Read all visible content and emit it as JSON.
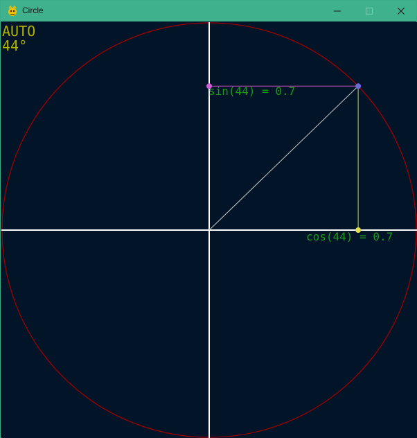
{
  "window": {
    "title": "Circle",
    "app_icon": "pygame-snake-icon",
    "controls": {
      "minimize_icon": "minimize-icon",
      "maximize_icon": "maximize-icon",
      "close_icon": "close-icon"
    }
  },
  "hud": {
    "mode": "AUTO",
    "angle": "44°"
  },
  "scene": {
    "angle_degrees": 44,
    "sin_text": "sin(44) = 0.7",
    "cos_text": "cos(44) = 0.7",
    "colors": {
      "background": "#011428",
      "circle": "#a00000",
      "axes": "#ffffff",
      "radius": "#c8c8c8",
      "sin_line": "#c850c8",
      "cos_line": "#d2d250",
      "sin_point": "#d060d8",
      "cos_point": "#e0e050",
      "tip_point": "#6a6ad8",
      "label": "#1a9a1a",
      "hud": "#b3b300"
    }
  }
}
